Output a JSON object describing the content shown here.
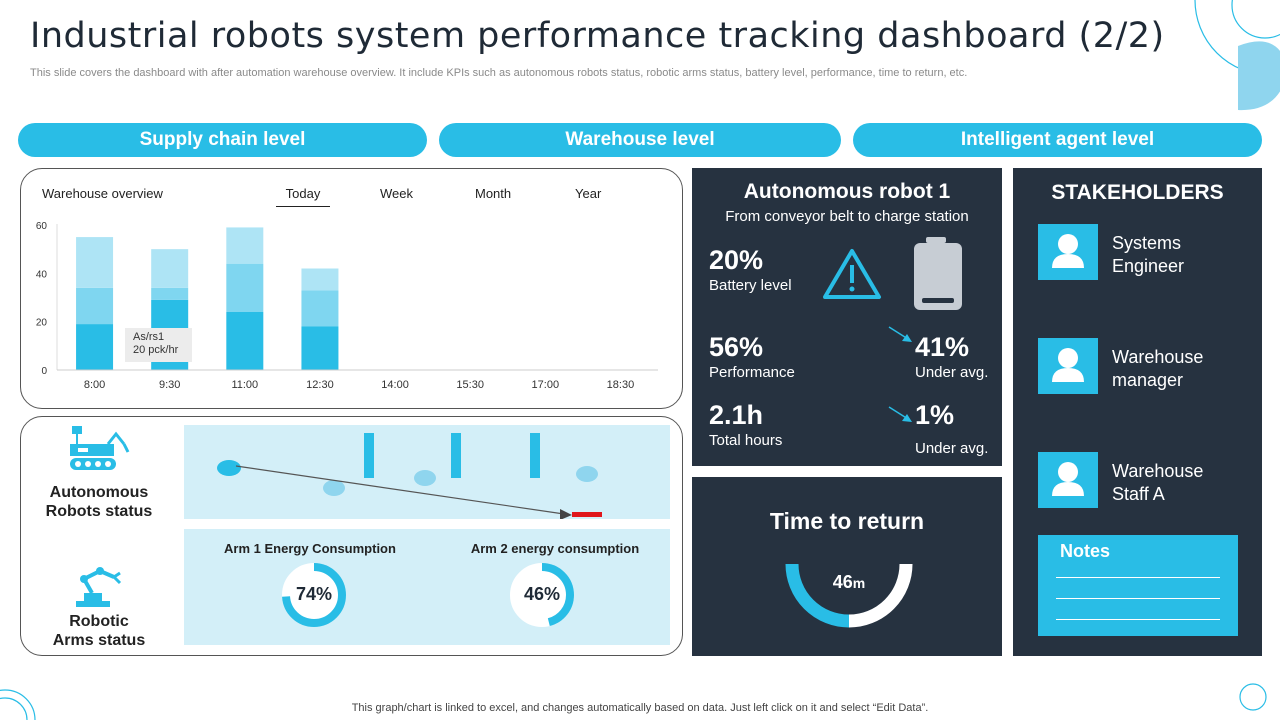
{
  "header": {
    "title": "Industrial robots system performance tracking dashboard (2/2)",
    "subtitle": "This slide covers the dashboard with after automation warehouse overview. It include KPIs such as autonomous robots status, robotic arms status, battery level, performance, time to return, etc."
  },
  "levels": [
    "Supply chain level",
    "Warehouse level",
    "Intelligent agent level"
  ],
  "overview": {
    "label": "Warehouse overview",
    "tabs": [
      "Today",
      "Week",
      "Month",
      "Year"
    ],
    "active_tab": "Today",
    "tooltip_line1": "As/rs1",
    "tooltip_line2": "20 pck/hr"
  },
  "chart_data": {
    "type": "bar",
    "stacked": true,
    "categories": [
      "8:00",
      "9:30",
      "11:00",
      "12:30",
      "14:00",
      "15:30",
      "17:00",
      "18:30"
    ],
    "series": [
      {
        "values": [
          19,
          29,
          24,
          18,
          0,
          0,
          0,
          0
        ],
        "color": "#29bde6"
      },
      {
        "values": [
          15,
          5,
          20,
          15,
          0,
          0,
          0,
          0
        ],
        "color": "#7fd6f0"
      },
      {
        "values": [
          21,
          16,
          15,
          9,
          0,
          0,
          0,
          0
        ],
        "color": "#aee4f5"
      }
    ],
    "yticks": [
      "0",
      "20",
      "40",
      "60"
    ],
    "ylim": [
      0,
      60
    ],
    "grid": false
  },
  "status": {
    "robots_label_1": "Autonomous",
    "robots_label_2": "Robots status",
    "arms_label_1": "Robotic",
    "arms_label_2": "Arms status",
    "arm1_title": "Arm 1 Energy Consumption",
    "arm1_value": "74%",
    "arm1_fraction": 0.74,
    "arm2_title": "Arm 2 energy consumption",
    "arm2_value": "46%",
    "arm2_fraction": 0.46
  },
  "robot": {
    "title": "Autonomous robot 1",
    "subtitle": "From conveyor belt to charge station",
    "battery_value": "20%",
    "battery_label": "Battery level",
    "battery_fraction": 0.2,
    "perf_value": "56%",
    "perf_label": "Performance",
    "perf_delta_value": "41%",
    "perf_delta_label": "Under avg.",
    "hours_value": "2.1h",
    "hours_label": "Total hours",
    "hours_delta_value": "1%",
    "hours_delta_label": "Under avg."
  },
  "time_to_return": {
    "title": "Time to return",
    "value": "46",
    "unit": "m"
  },
  "stakeholders": {
    "title": "STAKEHOLDERS",
    "items": [
      {
        "line1": "Systems",
        "line2": "Engineer"
      },
      {
        "line1": "Warehouse",
        "line2": "manager"
      },
      {
        "line1": "Warehouse",
        "line2": "Staff A"
      }
    ],
    "notes_title": "Notes"
  },
  "footer": "This graph/chart is linked to excel,  and changes automatically based on data. Just left click on it and select “Edit Data”.",
  "colors": {
    "accent": "#29bde6",
    "dark": "#263240",
    "light_panel": "#d3eff8"
  }
}
